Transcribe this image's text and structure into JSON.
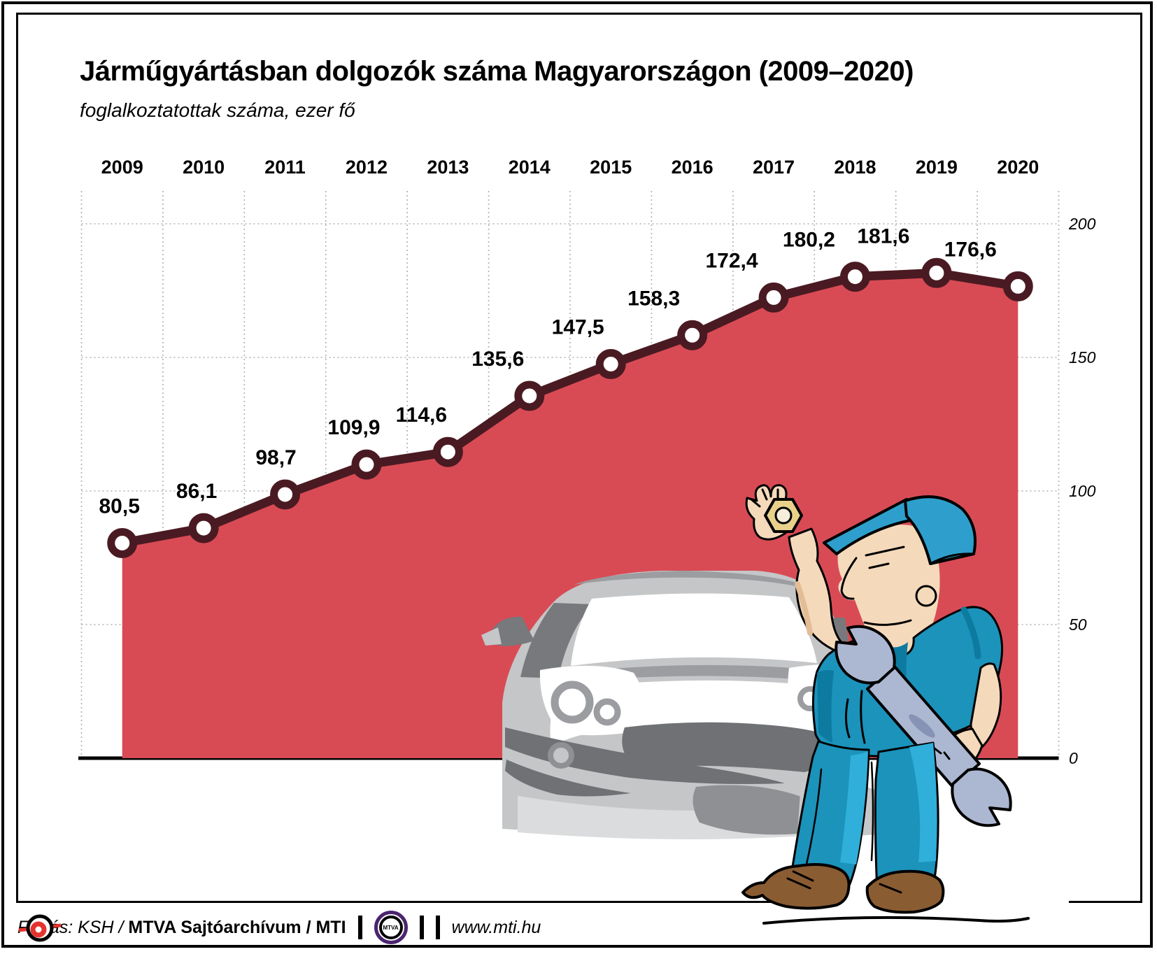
{
  "title": "Járműgyártásban dolgozók száma Magyarországon (2009–2020)",
  "subtitle": "foglalkoztatottak száma, ezer fő",
  "chart_data": {
    "type": "area",
    "categories": [
      "2009",
      "2010",
      "2011",
      "2012",
      "2013",
      "2014",
      "2015",
      "2016",
      "2017",
      "2018",
      "2019",
      "2020"
    ],
    "values": [
      80.5,
      86.1,
      98.7,
      109.9,
      114.6,
      135.6,
      147.5,
      158.3,
      172.4,
      180.2,
      181.6,
      176.6
    ],
    "value_labels": [
      "80,5",
      "86,1",
      "98,7",
      "109,9",
      "114,6",
      "135,6",
      "147,5",
      "158,3",
      "172,4",
      "180,2",
      "181,6",
      "176,6"
    ],
    "title": "Járműgyártásban dolgozók száma Magyarországon (2009–2020)",
    "xlabel": "",
    "ylabel": "foglalkoztatottak száma, ezer fő",
    "ylim": [
      0,
      200
    ],
    "right_axis_ticks": {
      "labels": [
        "200",
        "150",
        "100",
        "50",
        "0"
      ],
      "values": [
        200,
        150,
        100,
        50,
        0
      ]
    },
    "grid": true,
    "legend": "none",
    "colors": {
      "area": "#D84B55",
      "line": "#4A1A22",
      "marker_fill": "#FFFFFF",
      "grid": "#B0B0B0",
      "baseline": "#000000",
      "label_text": "#000000"
    }
  },
  "footer": {
    "source_italic": "Forrás: KSH /",
    "source_bold": " MTVA Sajtóarchívum / MTI",
    "mtva_logo_text": "MTVA",
    "website": "www.mti.hu"
  }
}
